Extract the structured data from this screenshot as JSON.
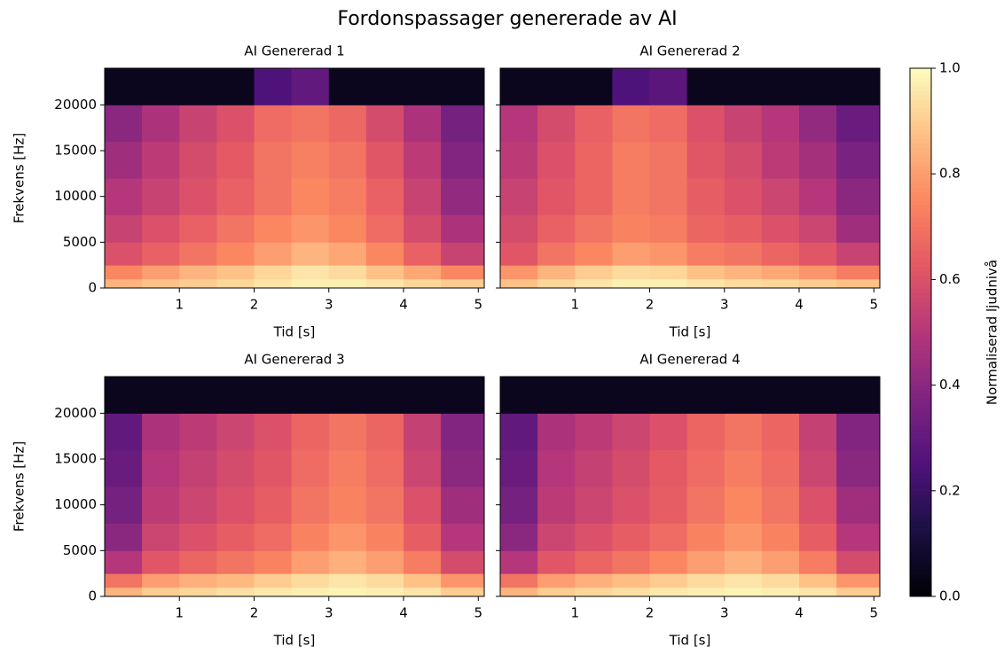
{
  "chart_data": {
    "type": "heatmap",
    "title": "Fordonspassager genererade av AI",
    "colorbar": {
      "label": "Normaliserad ljudnivå",
      "lim": [
        0,
        1
      ],
      "colormap": "magma",
      "ticks": [
        {
          "value": 0,
          "label": "0.0"
        },
        {
          "value": 0.2,
          "label": "0.2"
        },
        {
          "value": 0.4,
          "label": "0.4"
        },
        {
          "value": 0.6,
          "label": "0.6"
        },
        {
          "value": 0.8,
          "label": "0.8"
        },
        {
          "value": 1,
          "label": "1.0"
        }
      ]
    },
    "panels": [
      {
        "title": "AI Genererad 1",
        "xlabel": "Tid [s]",
        "ylabel": "Frekvens [Hz]",
        "show_yticklabels": true,
        "xlim": [
          0,
          5.08
        ],
        "ylim": [
          0,
          24000
        ],
        "xticks": [
          1,
          2,
          3,
          4,
          5
        ],
        "yticks": [
          0,
          5000,
          10000,
          15000,
          20000
        ],
        "x": [
          0,
          0.5,
          1,
          1.5,
          2,
          2.5,
          3,
          3.5,
          4,
          4.5,
          5.08
        ],
        "y": [
          0,
          1000,
          2500,
          5000,
          8000,
          12000,
          16000,
          20000,
          24000
        ],
        "z": [
          [
            0.85,
            0.88,
            0.9,
            0.92,
            0.95,
            0.97,
            0.97,
            0.95,
            0.92,
            0.9
          ],
          [
            0.75,
            0.8,
            0.85,
            0.88,
            0.92,
            0.95,
            0.93,
            0.88,
            0.82,
            0.75
          ],
          [
            0.6,
            0.65,
            0.7,
            0.75,
            0.8,
            0.85,
            0.82,
            0.75,
            0.65,
            0.55
          ],
          [
            0.55,
            0.6,
            0.65,
            0.7,
            0.75,
            0.78,
            0.75,
            0.68,
            0.58,
            0.48
          ],
          [
            0.5,
            0.55,
            0.6,
            0.65,
            0.7,
            0.75,
            0.72,
            0.65,
            0.55,
            0.42
          ],
          [
            0.45,
            0.52,
            0.58,
            0.63,
            0.7,
            0.73,
            0.7,
            0.62,
            0.52,
            0.38
          ],
          [
            0.4,
            0.48,
            0.55,
            0.6,
            0.68,
            0.7,
            0.67,
            0.58,
            0.48,
            0.35
          ],
          [
            0.05,
            0.05,
            0.05,
            0.05,
            0.25,
            0.3,
            0.05,
            0.05,
            0.05,
            0.05
          ]
        ]
      },
      {
        "title": "AI Genererad 2",
        "xlabel": "Tid [s]",
        "show_yticklabels": false,
        "xlim": [
          0,
          5.08
        ],
        "ylim": [
          0,
          24000
        ],
        "xticks": [
          1,
          2,
          3,
          4,
          5
        ],
        "yticks": [
          0,
          5000,
          10000,
          15000,
          20000
        ],
        "x": [
          0,
          0.5,
          1,
          1.5,
          2,
          2.5,
          3,
          3.5,
          4,
          4.5,
          5.08
        ],
        "y": [
          0,
          1000,
          2500,
          5000,
          8000,
          12000,
          16000,
          20000,
          24000
        ],
        "z": [
          [
            0.88,
            0.92,
            0.95,
            0.97,
            0.97,
            0.95,
            0.93,
            0.92,
            0.9,
            0.88
          ],
          [
            0.78,
            0.85,
            0.9,
            0.93,
            0.92,
            0.88,
            0.85,
            0.82,
            0.78,
            0.72
          ],
          [
            0.62,
            0.7,
            0.75,
            0.8,
            0.78,
            0.72,
            0.7,
            0.66,
            0.62,
            0.55
          ],
          [
            0.58,
            0.65,
            0.7,
            0.74,
            0.72,
            0.66,
            0.64,
            0.6,
            0.56,
            0.45
          ],
          [
            0.55,
            0.62,
            0.66,
            0.72,
            0.7,
            0.64,
            0.6,
            0.56,
            0.5,
            0.4
          ],
          [
            0.52,
            0.6,
            0.66,
            0.72,
            0.7,
            0.62,
            0.58,
            0.52,
            0.46,
            0.36
          ],
          [
            0.5,
            0.58,
            0.65,
            0.7,
            0.68,
            0.6,
            0.55,
            0.5,
            0.42,
            0.32
          ],
          [
            0.05,
            0.05,
            0.05,
            0.25,
            0.28,
            0.05,
            0.05,
            0.05,
            0.05,
            0.05
          ]
        ]
      },
      {
        "title": "AI Genererad 3",
        "xlabel": "Tid [s]",
        "ylabel": "Frekvens [Hz]",
        "show_yticklabels": true,
        "xlim": [
          0,
          5.08
        ],
        "ylim": [
          0,
          24000
        ],
        "xticks": [
          1,
          2,
          3,
          4,
          5
        ],
        "yticks": [
          0,
          5000,
          10000,
          15000,
          20000
        ],
        "x": [
          0,
          0.5,
          1,
          1.5,
          2,
          2.5,
          3,
          3.5,
          4,
          4.5,
          5.08
        ],
        "y": [
          0,
          1000,
          2500,
          5000,
          8000,
          12000,
          16000,
          20000,
          24000
        ],
        "z": [
          [
            0.85,
            0.9,
            0.92,
            0.94,
            0.96,
            0.97,
            0.98,
            0.97,
            0.95,
            0.9
          ],
          [
            0.7,
            0.8,
            0.84,
            0.86,
            0.9,
            0.93,
            0.95,
            0.93,
            0.88,
            0.78
          ],
          [
            0.5,
            0.62,
            0.66,
            0.7,
            0.74,
            0.8,
            0.84,
            0.8,
            0.72,
            0.58
          ],
          [
            0.4,
            0.56,
            0.6,
            0.64,
            0.68,
            0.74,
            0.78,
            0.74,
            0.64,
            0.5
          ],
          [
            0.35,
            0.52,
            0.56,
            0.6,
            0.64,
            0.7,
            0.74,
            0.7,
            0.6,
            0.45
          ],
          [
            0.32,
            0.5,
            0.54,
            0.58,
            0.62,
            0.68,
            0.72,
            0.68,
            0.56,
            0.4
          ],
          [
            0.3,
            0.48,
            0.52,
            0.56,
            0.6,
            0.66,
            0.7,
            0.66,
            0.54,
            0.38
          ],
          [
            0.05,
            0.05,
            0.05,
            0.05,
            0.05,
            0.05,
            0.05,
            0.05,
            0.05,
            0.05
          ]
        ]
      },
      {
        "title": "AI Genererad 4",
        "xlabel": "Tid [s]",
        "show_yticklabels": false,
        "xlim": [
          0,
          5.08
        ],
        "ylim": [
          0,
          24000
        ],
        "xticks": [
          1,
          2,
          3,
          4,
          5
        ],
        "yticks": [
          0,
          5000,
          10000,
          15000,
          20000
        ],
        "x": [
          0,
          0.5,
          1,
          1.5,
          2,
          2.5,
          3,
          3.5,
          4,
          4.5,
          5.08
        ],
        "y": [
          0,
          1000,
          2500,
          5000,
          8000,
          12000,
          16000,
          20000,
          24000
        ],
        "z": [
          [
            0.85,
            0.9,
            0.92,
            0.94,
            0.96,
            0.97,
            0.98,
            0.97,
            0.95,
            0.9
          ],
          [
            0.7,
            0.8,
            0.84,
            0.87,
            0.9,
            0.93,
            0.95,
            0.93,
            0.88,
            0.78
          ],
          [
            0.5,
            0.62,
            0.66,
            0.7,
            0.75,
            0.8,
            0.84,
            0.8,
            0.72,
            0.58
          ],
          [
            0.4,
            0.56,
            0.6,
            0.64,
            0.68,
            0.74,
            0.78,
            0.74,
            0.64,
            0.5
          ],
          [
            0.35,
            0.52,
            0.56,
            0.6,
            0.64,
            0.7,
            0.75,
            0.7,
            0.6,
            0.45
          ],
          [
            0.32,
            0.5,
            0.54,
            0.58,
            0.63,
            0.68,
            0.72,
            0.68,
            0.56,
            0.4
          ],
          [
            0.3,
            0.48,
            0.52,
            0.56,
            0.6,
            0.66,
            0.7,
            0.66,
            0.54,
            0.38
          ],
          [
            0.05,
            0.05,
            0.05,
            0.05,
            0.05,
            0.05,
            0.05,
            0.05,
            0.05,
            0.05
          ]
        ]
      }
    ]
  }
}
